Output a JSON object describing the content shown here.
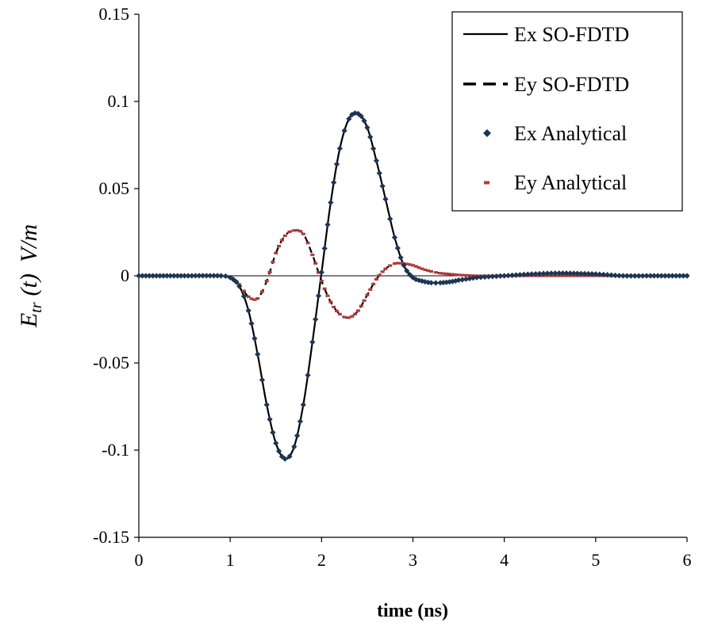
{
  "chart_data": {
    "type": "line",
    "title": "",
    "xlabel": "time (ns)",
    "ylabel": {
      "symbol": "E",
      "subscript": "tr",
      "argument": "(t)",
      "unit": "V/m"
    },
    "xlim": [
      0,
      6
    ],
    "ylim": [
      -0.15,
      0.15
    ],
    "x_ticks": [
      0,
      1,
      2,
      3,
      4,
      5,
      6
    ],
    "x_tick_labels": [
      "0",
      "1",
      "2",
      "3",
      "4",
      "5",
      "6"
    ],
    "y_ticks": [
      0.15,
      0.1,
      0.05,
      0,
      -0.05,
      -0.1,
      -0.15
    ],
    "y_tick_labels": [
      "0.15",
      "0.1",
      "0.05",
      "0",
      "-0.05",
      "-0.1",
      "-0.15"
    ],
    "grid": false,
    "legend_position": "top-right",
    "x": [
      0,
      0.5,
      0.9,
      1.0,
      1.1,
      1.2,
      1.3,
      1.4,
      1.5,
      1.6,
      1.7,
      1.8,
      1.9,
      2.0,
      2.1,
      2.2,
      2.3,
      2.4,
      2.5,
      2.6,
      2.7,
      2.8,
      2.9,
      3.0,
      3.1,
      3.2,
      3.3,
      3.4,
      3.5,
      3.7,
      4.0,
      4.3,
      4.6,
      5.0,
      5.3,
      5.6,
      6.0
    ],
    "series": [
      {
        "name": "Ex SO-FDTD",
        "style": "solid",
        "color": "#000000",
        "values": [
          0,
          0,
          0,
          -0.001,
          -0.006,
          -0.02,
          -0.045,
          -0.074,
          -0.096,
          -0.105,
          -0.098,
          -0.074,
          -0.038,
          0.002,
          0.042,
          0.073,
          0.09,
          0.093,
          0.085,
          0.066,
          0.044,
          0.022,
          0.006,
          -0.001,
          -0.003,
          -0.004,
          -0.004,
          -0.0035,
          -0.0025,
          -0.001,
          0,
          0.001,
          0.0015,
          0.001,
          0,
          0,
          0
        ]
      },
      {
        "name": "Ey SO-FDTD",
        "style": "dashed",
        "color": "#000000",
        "values": [
          0,
          0,
          0,
          -0.001,
          -0.005,
          -0.012,
          -0.013,
          -0.003,
          0.013,
          0.023,
          0.026,
          0.024,
          0.012,
          -0.003,
          -0.015,
          -0.022,
          -0.024,
          -0.02,
          -0.011,
          -0.002,
          0.004,
          0.007,
          0.007,
          0.006,
          0.004,
          0.0025,
          0.0015,
          0.001,
          0.0005,
          0,
          0,
          0,
          0,
          0,
          0,
          0,
          0
        ]
      },
      {
        "name": "Ex Analytical",
        "style": "diamond-markers",
        "color": "#1c3552",
        "values": [
          0,
          0,
          0,
          -0.001,
          -0.006,
          -0.02,
          -0.045,
          -0.074,
          -0.096,
          -0.105,
          -0.098,
          -0.074,
          -0.038,
          0.002,
          0.042,
          0.073,
          0.09,
          0.093,
          0.085,
          0.066,
          0.044,
          0.022,
          0.006,
          -0.001,
          -0.003,
          -0.004,
          -0.004,
          -0.0035,
          -0.0025,
          -0.001,
          0,
          0.001,
          0.0015,
          0.001,
          0,
          0,
          0
        ]
      },
      {
        "name": "Ey Analytical",
        "style": "dash-markers",
        "color": "#b03a3a",
        "values": [
          0,
          0,
          0,
          -0.001,
          -0.005,
          -0.012,
          -0.013,
          -0.003,
          0.013,
          0.023,
          0.026,
          0.024,
          0.012,
          -0.003,
          -0.015,
          -0.022,
          -0.024,
          -0.02,
          -0.011,
          -0.002,
          0.004,
          0.007,
          0.007,
          0.006,
          0.004,
          0.0025,
          0.0015,
          0.001,
          0.0005,
          0,
          0,
          0,
          0,
          0,
          0,
          0,
          0
        ]
      }
    ]
  }
}
